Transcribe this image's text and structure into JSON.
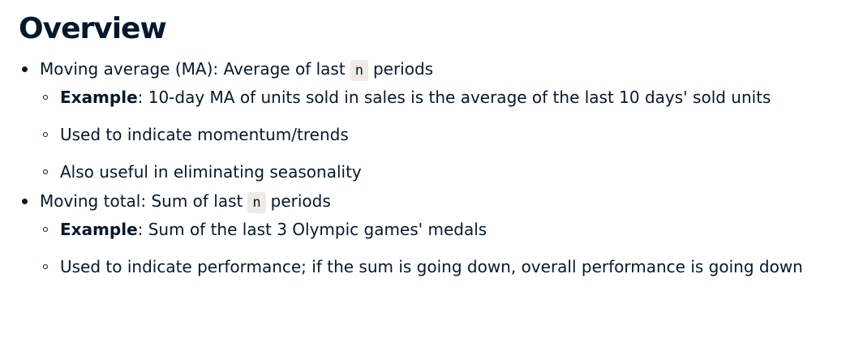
{
  "title": "Overview",
  "bullets": [
    {
      "lead": "Moving average (MA): Average of last",
      "code": "n",
      "tail": "periods",
      "subitems": [
        {
          "bold": "Example",
          "text": ": 10-day MA of units sold in sales is the average of the last 10 days' sold units"
        },
        {
          "text": "Used to indicate momentum/trends"
        },
        {
          "text": "Also useful in eliminating seasonality"
        }
      ]
    },
    {
      "lead": "Moving total: Sum of last",
      "code": "n",
      "tail": "periods",
      "subitems": [
        {
          "bold": "Example",
          "text": ": Sum of the last 3 Olympic games' medals"
        },
        {
          "text": "Used to indicate performance; if the sum is going down, overall performance is going down"
        }
      ]
    }
  ]
}
